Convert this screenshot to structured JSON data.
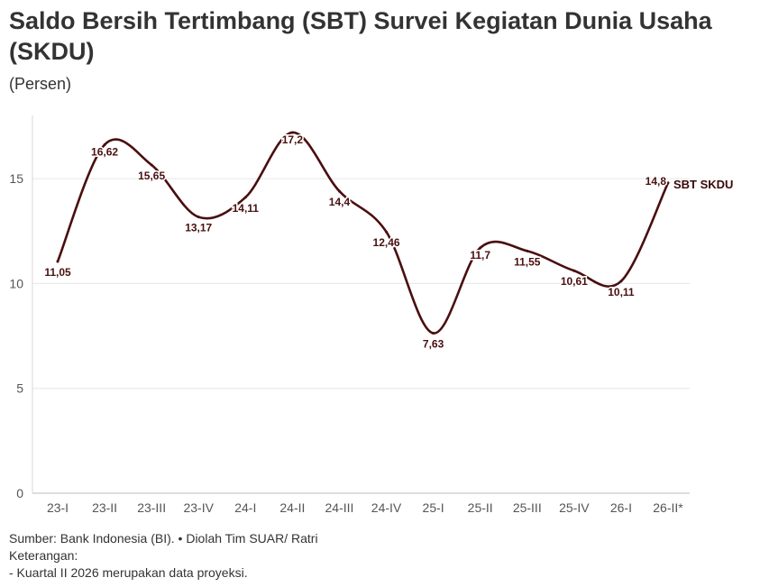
{
  "title": "Saldo Bersih Tertimbang (SBT) Survei Kegiatan Dunia Usaha (SKDU)",
  "subtitle": "(Persen)",
  "footer": {
    "source": "Sumber: Bank Indonesia (BI). • Diolah Tim SUAR/ Ratri",
    "note_heading": "Keterangan:",
    "note": "- Kuartal II 2026 merupakan data proyeksi."
  },
  "colors": {
    "line": "#4a0e0e",
    "grid": "#e6e6e6",
    "text": "#333333"
  },
  "chart_data": {
    "type": "line",
    "categories": [
      "23-I",
      "23-II",
      "23-III",
      "23-IV",
      "24-I",
      "24-II",
      "24-III",
      "24-IV",
      "25-I",
      "25-II",
      "25-III",
      "25-IV",
      "26-I",
      "26-II*"
    ],
    "series": [
      {
        "name": "SBT SKDU",
        "values": [
          11.05,
          16.62,
          15.65,
          13.17,
          14.11,
          17.2,
          14.4,
          12.46,
          7.63,
          11.7,
          11.55,
          10.61,
          10.11,
          14.8
        ],
        "labels": [
          "11,05",
          "16,62",
          "15,65",
          "13,17",
          "14,11",
          "17,2",
          "14,4",
          "12,46",
          "7,63",
          "11,7",
          "11,55",
          "10,61",
          "10,11",
          "14,8"
        ]
      }
    ],
    "yticks": [
      0,
      5,
      10,
      15
    ],
    "ylim": [
      0,
      17.8
    ],
    "grid": true,
    "legend": "end-of-line label"
  }
}
